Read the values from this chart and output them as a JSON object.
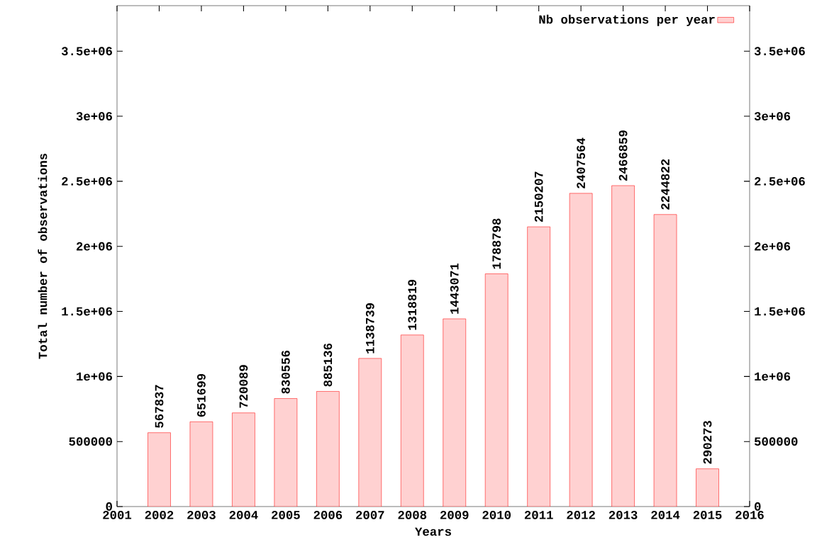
{
  "chart_data": {
    "type": "bar",
    "xlabel": "Years",
    "ylabel": "Total number of observations",
    "x": [
      2002,
      2003,
      2004,
      2005,
      2006,
      2007,
      2008,
      2009,
      2010,
      2011,
      2012,
      2013,
      2014,
      2015
    ],
    "series": [
      {
        "name": "Nb observations per year",
        "color": "#ff0000",
        "values": [
          567837,
          651699,
          720089,
          830556,
          885136,
          1138739,
          1318819,
          1443071,
          1788798,
          2150207,
          2407564,
          2466859,
          2244822,
          290273
        ]
      }
    ],
    "data_labels": true,
    "legend": "top right",
    "grid": false,
    "xlim": [
      2001,
      2016
    ],
    "xticks": [
      2001,
      2002,
      2003,
      2004,
      2005,
      2006,
      2007,
      2008,
      2009,
      2010,
      2011,
      2012,
      2013,
      2014,
      2015,
      2016
    ],
    "ylim": [
      0,
      3850000
    ],
    "yticks": [
      {
        "value": 0,
        "label": "0"
      },
      {
        "value": 500000,
        "label": "500000"
      },
      {
        "value": 1000000,
        "label": "1e+06"
      },
      {
        "value": 1500000,
        "label": "1.5e+06"
      },
      {
        "value": 2000000,
        "label": "2e+06"
      },
      {
        "value": 2500000,
        "label": "2.5e+06"
      },
      {
        "value": 3000000,
        "label": "3e+06"
      },
      {
        "value": 3500000,
        "label": "3.5e+06"
      }
    ],
    "y2lim": [
      0,
      3850000
    ],
    "y2ticks": [
      {
        "value": 0,
        "label": "0"
      },
      {
        "value": 500000,
        "label": "500000"
      },
      {
        "value": 1000000,
        "label": "1e+06"
      },
      {
        "value": 1500000,
        "label": "1.5e+06"
      },
      {
        "value": 2000000,
        "label": "2e+06"
      },
      {
        "value": 2500000,
        "label": "2.5e+06"
      },
      {
        "value": 3000000,
        "label": "3e+06"
      },
      {
        "value": 3500000,
        "label": "3.5e+06"
      }
    ]
  }
}
